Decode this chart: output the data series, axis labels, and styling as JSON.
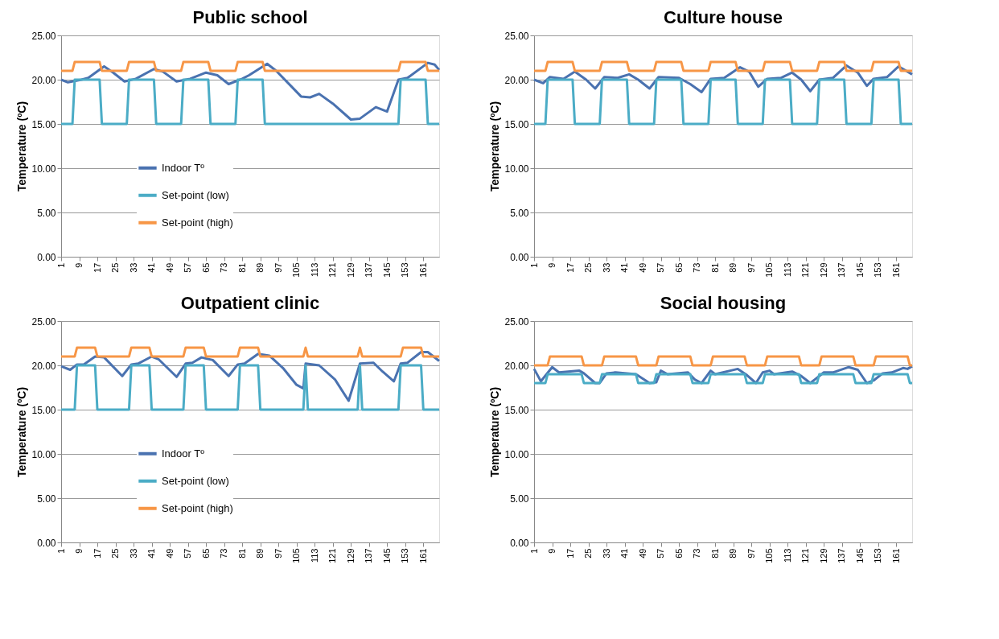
{
  "chart_data": [
    {
      "type": "line",
      "title": "Public school",
      "ylabel": "Temperature (ºC)",
      "xlim": [
        1,
        168
      ],
      "xticks": [
        1,
        9,
        17,
        25,
        33,
        41,
        49,
        57,
        65,
        73,
        81,
        89,
        97,
        105,
        113,
        121,
        129,
        137,
        145,
        153,
        161
      ],
      "ylim": [
        0,
        25
      ],
      "yticks": [
        {
          "value": 0,
          "label": "0.00"
        },
        {
          "value": 5,
          "label": "5.00"
        },
        {
          "value": 10,
          "label": "10.00"
        },
        {
          "value": 15,
          "label": "15.00"
        },
        {
          "value": 20,
          "label": "20.00"
        },
        {
          "value": 25,
          "label": "25.00"
        }
      ],
      "grid": "y",
      "legend": "left",
      "series": [
        {
          "name": "Indoor Tº",
          "color": "#4a72b0",
          "x": [
            1,
            4,
            10,
            13,
            20,
            24,
            29,
            34,
            42,
            46,
            52,
            58,
            65,
            70,
            75,
            81,
            84,
            92,
            96,
            104,
            107,
            111,
            115,
            121,
            129,
            133,
            140,
            145,
            150,
            154,
            163,
            166,
            168
          ],
          "values": [
            20.0,
            19.7,
            20.0,
            20.2,
            21.5,
            20.8,
            19.8,
            20.1,
            21.2,
            20.9,
            19.8,
            20.1,
            20.8,
            20.5,
            19.5,
            20.1,
            20.5,
            21.8,
            21.0,
            18.9,
            18.1,
            18.0,
            18.4,
            17.3,
            15.5,
            15.6,
            16.9,
            16.4,
            20.0,
            20.2,
            21.9,
            21.7,
            21.1
          ]
        },
        {
          "name": "Set-point (low)",
          "color": "#4bacc6",
          "x": [
            1,
            6,
            7,
            18,
            19,
            30,
            31,
            42,
            43,
            54,
            55,
            66,
            67,
            78,
            79,
            90,
            91,
            150,
            151,
            162,
            163,
            168
          ],
          "values": [
            15,
            15,
            20,
            20,
            15,
            15,
            20,
            20,
            15,
            15,
            20,
            20,
            15,
            15,
            20,
            20,
            15,
            15,
            20,
            20,
            15,
            15
          ]
        },
        {
          "name": "Set-point (high)",
          "color": "#f79646",
          "x": [
            1,
            6,
            7,
            18,
            19,
            30,
            31,
            42,
            43,
            54,
            55,
            66,
            67,
            78,
            79,
            90,
            91,
            150,
            151,
            162,
            163,
            168
          ],
          "values": [
            21,
            21,
            22,
            22,
            21,
            21,
            22,
            22,
            21,
            21,
            22,
            22,
            21,
            21,
            22,
            22,
            21,
            21,
            22,
            22,
            21,
            21
          ]
        }
      ]
    },
    {
      "type": "line",
      "title": "Culture house",
      "ylabel": "Temperature (ºC)",
      "xlim": [
        1,
        168
      ],
      "xticks": [
        1,
        9,
        17,
        25,
        33,
        41,
        49,
        57,
        65,
        73,
        81,
        89,
        97,
        105,
        113,
        121,
        129,
        137,
        145,
        153,
        161
      ],
      "ylim": [
        0,
        25
      ],
      "yticks": [
        {
          "value": 0,
          "label": "0.00"
        },
        {
          "value": 5,
          "label": "5.00"
        },
        {
          "value": 10,
          "label": "10.00"
        },
        {
          "value": 15,
          "label": "15.00"
        },
        {
          "value": 20,
          "label": "20.00"
        },
        {
          "value": 25,
          "label": "25.00"
        }
      ],
      "grid": "y",
      "legend": "left",
      "series": [
        {
          "name": "Indoor Tº",
          "color": "#4a72b0",
          "x": [
            1,
            5,
            8,
            14,
            19,
            24,
            28,
            32,
            38,
            43,
            47,
            52,
            56,
            65,
            70,
            75,
            79,
            85,
            92,
            96,
            100,
            104,
            110,
            115,
            119,
            123,
            127,
            133,
            139,
            144,
            148,
            151,
            157,
            162,
            168
          ],
          "values": [
            20.0,
            19.6,
            20.3,
            20.1,
            20.9,
            20.0,
            19.0,
            20.3,
            20.2,
            20.6,
            20.0,
            19.0,
            20.3,
            20.2,
            19.5,
            18.6,
            20.1,
            20.2,
            21.4,
            20.9,
            19.2,
            20.1,
            20.2,
            20.8,
            20.0,
            18.7,
            20.0,
            20.2,
            21.6,
            20.8,
            19.3,
            20.1,
            20.3,
            21.5,
            20.6
          ]
        },
        {
          "name": "Set-point (low)",
          "color": "#4bacc6",
          "x": [
            1,
            6,
            7,
            18,
            19,
            30,
            31,
            42,
            43,
            54,
            55,
            66,
            67,
            78,
            79,
            90,
            91,
            102,
            103,
            114,
            115,
            126,
            127,
            138,
            139,
            150,
            151,
            162,
            163,
            168
          ],
          "values": [
            15,
            15,
            20,
            20,
            15,
            15,
            20,
            20,
            15,
            15,
            20,
            20,
            15,
            15,
            20,
            20,
            15,
            15,
            20,
            20,
            15,
            15,
            20,
            20,
            15,
            15,
            20,
            20,
            15,
            15
          ]
        },
        {
          "name": "Set-point (high)",
          "color": "#f79646",
          "x": [
            1,
            6,
            7,
            18,
            19,
            30,
            31,
            42,
            43,
            54,
            55,
            66,
            67,
            78,
            79,
            90,
            91,
            102,
            103,
            114,
            115,
            126,
            127,
            138,
            139,
            150,
            151,
            162,
            163,
            168
          ],
          "values": [
            21,
            21,
            22,
            22,
            21,
            21,
            22,
            22,
            21,
            21,
            22,
            22,
            21,
            21,
            22,
            22,
            21,
            21,
            22,
            22,
            21,
            21,
            22,
            22,
            21,
            21,
            22,
            22,
            21,
            21
          ]
        }
      ]
    },
    {
      "type": "line",
      "title": "Outpatient clinic",
      "ylabel": "Temperature (ºC)",
      "xlim": [
        1,
        168
      ],
      "xticks": [
        1,
        9,
        17,
        25,
        33,
        41,
        49,
        57,
        65,
        73,
        81,
        89,
        97,
        105,
        113,
        121,
        129,
        137,
        145,
        153,
        161
      ],
      "ylim": [
        0,
        25
      ],
      "yticks": [
        {
          "value": 0,
          "label": "0.00"
        },
        {
          "value": 5,
          "label": "5.00"
        },
        {
          "value": 10,
          "label": "10.00"
        },
        {
          "value": 15,
          "label": "15.00"
        },
        {
          "value": 20,
          "label": "20.00"
        },
        {
          "value": 25,
          "label": "25.00"
        }
      ],
      "grid": "y",
      "legend": "left",
      "series": [
        {
          "name": "Indoor Tº",
          "color": "#4a72b0",
          "x": [
            1,
            5,
            8,
            11,
            16,
            20,
            28,
            32,
            35,
            41,
            44,
            52,
            56,
            59,
            63,
            68,
            75,
            79,
            82,
            88,
            93,
            99,
            105,
            108,
            109,
            115,
            122,
            128,
            133,
            139,
            143,
            148,
            151,
            154,
            160,
            163,
            168
          ],
          "values": [
            19.9,
            19.5,
            20.1,
            20.1,
            21.0,
            20.9,
            18.8,
            20.1,
            20.2,
            21.0,
            20.7,
            18.7,
            20.2,
            20.3,
            20.9,
            20.6,
            18.8,
            20.1,
            20.2,
            21.3,
            21.1,
            19.7,
            17.8,
            17.4,
            20.2,
            20.0,
            18.4,
            16.0,
            20.2,
            20.3,
            19.3,
            18.2,
            20.2,
            20.3,
            21.5,
            21.5,
            20.5
          ]
        },
        {
          "name": "Set-point (low)",
          "color": "#4bacc6",
          "x": [
            1,
            7,
            8,
            16,
            17,
            31,
            32,
            40,
            41,
            55,
            56,
            64,
            65,
            79,
            80,
            88,
            89,
            108,
            109,
            110,
            132,
            133,
            134,
            150,
            151,
            160,
            161,
            168
          ],
          "values": [
            15,
            15,
            20,
            20,
            15,
            15,
            20,
            20,
            15,
            15,
            20,
            20,
            15,
            15,
            20,
            20,
            15,
            15,
            20,
            15,
            15,
            20,
            15,
            15,
            20,
            20,
            15,
            15
          ]
        },
        {
          "name": "Set-point (high)",
          "color": "#f79646",
          "x": [
            1,
            7,
            8,
            16,
            17,
            31,
            32,
            40,
            41,
            55,
            56,
            64,
            65,
            79,
            80,
            88,
            89,
            108,
            109,
            110,
            132,
            133,
            134,
            151,
            152,
            160,
            161,
            168
          ],
          "values": [
            21,
            21,
            22,
            22,
            21,
            21,
            22,
            22,
            21,
            21,
            22,
            22,
            21,
            21,
            22,
            22,
            21,
            21,
            22,
            21,
            21,
            22,
            21,
            21,
            22,
            22,
            21,
            21
          ]
        }
      ]
    },
    {
      "type": "line",
      "title": "Social housing",
      "ylabel": "Temperature (ºC)",
      "xlim": [
        1,
        168
      ],
      "xticks": [
        1,
        9,
        17,
        25,
        33,
        41,
        49,
        57,
        65,
        73,
        81,
        89,
        97,
        105,
        113,
        121,
        129,
        137,
        145,
        153,
        161
      ],
      "ylim": [
        0,
        25
      ],
      "yticks": [
        {
          "value": 0,
          "label": "0.00"
        },
        {
          "value": 5,
          "label": "5.00"
        },
        {
          "value": 10,
          "label": "10.00"
        },
        {
          "value": 15,
          "label": "15.00"
        },
        {
          "value": 20,
          "label": "20.00"
        },
        {
          "value": 25,
          "label": "25.00"
        }
      ],
      "grid": "y",
      "legend": "left",
      "series": [
        {
          "name": "Indoor Tº",
          "color": "#4a72b0",
          "x": [
            1,
            4,
            9,
            12,
            21,
            23,
            28,
            30,
            33,
            37,
            46,
            52,
            55,
            57,
            60,
            69,
            72,
            75,
            79,
            81,
            91,
            95,
            99,
            102,
            105,
            107,
            115,
            119,
            123,
            125,
            129,
            133,
            140,
            144,
            148,
            151,
            155,
            159,
            164,
            166,
            168
          ],
          "values": [
            19.6,
            18.2,
            19.8,
            19.2,
            19.4,
            19.1,
            18.0,
            18.0,
            19.1,
            19.2,
            19.0,
            18.0,
            18.1,
            19.4,
            19.0,
            19.2,
            18.4,
            18.0,
            19.4,
            19.0,
            19.6,
            18.9,
            18.0,
            19.2,
            19.4,
            19.0,
            19.3,
            18.8,
            18.0,
            18.4,
            19.2,
            19.2,
            19.8,
            19.5,
            18.0,
            18.3,
            19.1,
            19.2,
            19.7,
            19.6,
            19.9
          ]
        },
        {
          "name": "Set-point (low)",
          "color": "#4bacc6",
          "x": [
            1,
            6,
            7,
            22,
            23,
            30,
            31,
            46,
            47,
            54,
            55,
            70,
            71,
            78,
            79,
            94,
            95,
            102,
            103,
            118,
            119,
            126,
            127,
            142,
            143,
            150,
            151,
            166,
            167,
            168
          ],
          "values": [
            18,
            18,
            19,
            19,
            18,
            18,
            19,
            19,
            18,
            18,
            19,
            19,
            18,
            18,
            19,
            19,
            18,
            18,
            19,
            19,
            18,
            18,
            19,
            19,
            18,
            18,
            19,
            19,
            18,
            18
          ]
        },
        {
          "name": "Set-point (high)",
          "color": "#f79646",
          "x": [
            1,
            7,
            8,
            22,
            23,
            31,
            32,
            46,
            47,
            55,
            56,
            70,
            71,
            79,
            80,
            94,
            95,
            103,
            104,
            118,
            119,
            127,
            128,
            142,
            143,
            151,
            152,
            166,
            167,
            168
          ],
          "values": [
            20,
            20,
            21,
            21,
            20,
            20,
            21,
            21,
            20,
            20,
            21,
            21,
            20,
            20,
            21,
            21,
            20,
            20,
            21,
            21,
            20,
            20,
            21,
            21,
            20,
            20,
            21,
            21,
            20,
            20
          ]
        }
      ]
    }
  ]
}
